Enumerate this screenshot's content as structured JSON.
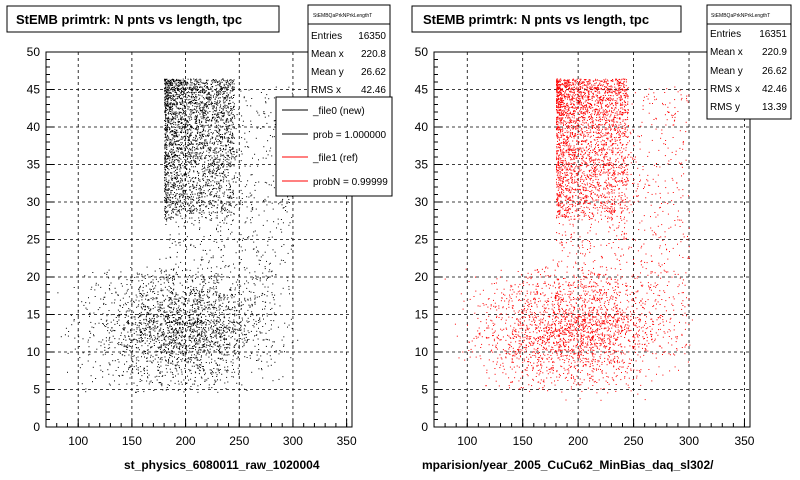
{
  "chart_data": [
    {
      "type": "scatter",
      "title": "StEMB primtrk: N pnts vs length, tpc",
      "xlabel": "st_physics_6080011_raw_1020004",
      "ylabel": "",
      "xlim": [
        70,
        355
      ],
      "ylim": [
        0,
        50
      ],
      "xticks": [
        "100",
        "150",
        "200",
        "250",
        "300",
        "350"
      ],
      "yticks": [
        "0",
        "5",
        "10",
        "15",
        "20",
        "25",
        "30",
        "35",
        "40",
        "45",
        "50"
      ],
      "grid": true,
      "point_color": "#000000",
      "stats": {
        "header": "StEMBQaPrkNPrkLengthT",
        "rows": [
          {
            "label": "Entries",
            "value": "16350"
          },
          {
            "label": "Mean x",
            "value": "220.8"
          },
          {
            "label": "Mean y",
            "value": "26.62"
          },
          {
            "label": "RMS x",
            "value": "42.46"
          }
        ]
      },
      "legend": {
        "placement": "top-right",
        "entries": [
          {
            "label": "_file0 (new)",
            "color": "#000000"
          },
          {
            "label": "prob = 1.000000",
            "color": "#000000"
          },
          {
            "label": "_file1 (ref)",
            "color": "#ff0000"
          },
          {
            "label": "probN = 0.99999",
            "color": "#ff0000"
          }
        ]
      },
      "clusters": [
        {
          "x_range": [
            180,
            245
          ],
          "y_range": [
            28,
            46
          ],
          "density": "high"
        },
        {
          "x_range": [
            75,
            310
          ],
          "y_range": [
            4,
            22
          ],
          "density": "medium"
        },
        {
          "x_range": [
            180,
            300
          ],
          "y_range": [
            10,
            45
          ],
          "density": "low"
        }
      ]
    },
    {
      "type": "scatter",
      "title": "StEMB primtrk: N pnts vs length, tpc",
      "xlabel": "mparision/year_2005_CuCu62_MinBias_daq_sl302/",
      "ylabel": "",
      "xlim": [
        70,
        355
      ],
      "ylim": [
        0,
        50
      ],
      "xticks": [
        "100",
        "150",
        "200",
        "250",
        "300",
        "350"
      ],
      "yticks": [
        "0",
        "5",
        "10",
        "15",
        "20",
        "25",
        "30",
        "35",
        "40",
        "45",
        "50"
      ],
      "grid": true,
      "point_color": "#ff0000",
      "stats": {
        "header": "StEMBQaPrkNPrkLengthT",
        "rows": [
          {
            "label": "Entries",
            "value": "16351"
          },
          {
            "label": "Mean x",
            "value": "220.9"
          },
          {
            "label": "Mean y",
            "value": "26.62"
          },
          {
            "label": "RMS x",
            "value": "42.46"
          },
          {
            "label": "RMS y",
            "value": "13.39"
          }
        ]
      },
      "clusters": [
        {
          "x_range": [
            180,
            245
          ],
          "y_range": [
            28,
            46
          ],
          "density": "high"
        },
        {
          "x_range": [
            75,
            310
          ],
          "y_range": [
            4,
            22
          ],
          "density": "medium"
        },
        {
          "x_range": [
            180,
            300
          ],
          "y_range": [
            10,
            45
          ],
          "density": "low"
        }
      ]
    }
  ]
}
